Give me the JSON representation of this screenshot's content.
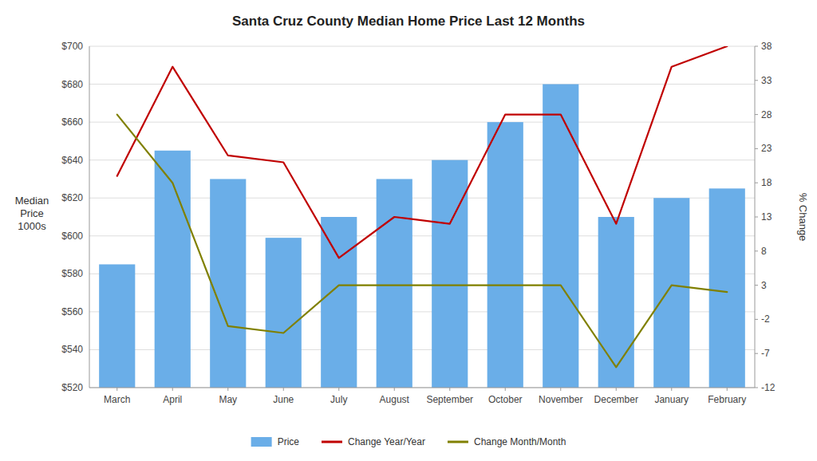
{
  "chart_data": {
    "type": "bar",
    "title": "Santa Cruz County Median Home Price Last 12 Months",
    "ylabel": "Median\nPrice\n1000s",
    "y2label": "% Change",
    "categories": [
      "March",
      "April",
      "May",
      "June",
      "July",
      "August",
      "September",
      "October",
      "November",
      "December",
      "January",
      "February"
    ],
    "series": [
      {
        "name": "Price",
        "type": "bar",
        "color": "#6aaee8",
        "values": [
          585,
          645,
          630,
          599,
          610,
          630,
          640,
          660,
          680,
          610,
          620,
          625
        ]
      },
      {
        "name": "Change Year/Year",
        "type": "line",
        "axis": "y2",
        "color": "#C00000",
        "values": [
          19,
          35,
          22,
          21,
          7,
          13,
          12,
          28,
          28,
          12,
          35,
          38
        ]
      },
      {
        "name": "Change Month/Month",
        "type": "line",
        "axis": "y2",
        "color": "#808000",
        "values": [
          28,
          18,
          -3,
          -4,
          3,
          3,
          3,
          3,
          3,
          -9,
          3,
          2
        ]
      }
    ],
    "ylim": [
      520,
      700
    ],
    "yticks": [
      {
        "value": 520,
        "label": "$520"
      },
      {
        "value": 540,
        "label": "$540"
      },
      {
        "value": 560,
        "label": "$560"
      },
      {
        "value": 580,
        "label": "$580"
      },
      {
        "value": 600,
        "label": "$600"
      },
      {
        "value": 620,
        "label": "$620"
      },
      {
        "value": 640,
        "label": "$640"
      },
      {
        "value": 660,
        "label": "$660"
      },
      {
        "value": 680,
        "label": "$680"
      },
      {
        "value": 700,
        "label": "$700"
      }
    ],
    "y2lim": [
      -12,
      38
    ],
    "y2ticks": [
      -12,
      -7,
      -2,
      3,
      8,
      13,
      18,
      23,
      28,
      33,
      38
    ],
    "grid": true,
    "legend": "bottom"
  }
}
